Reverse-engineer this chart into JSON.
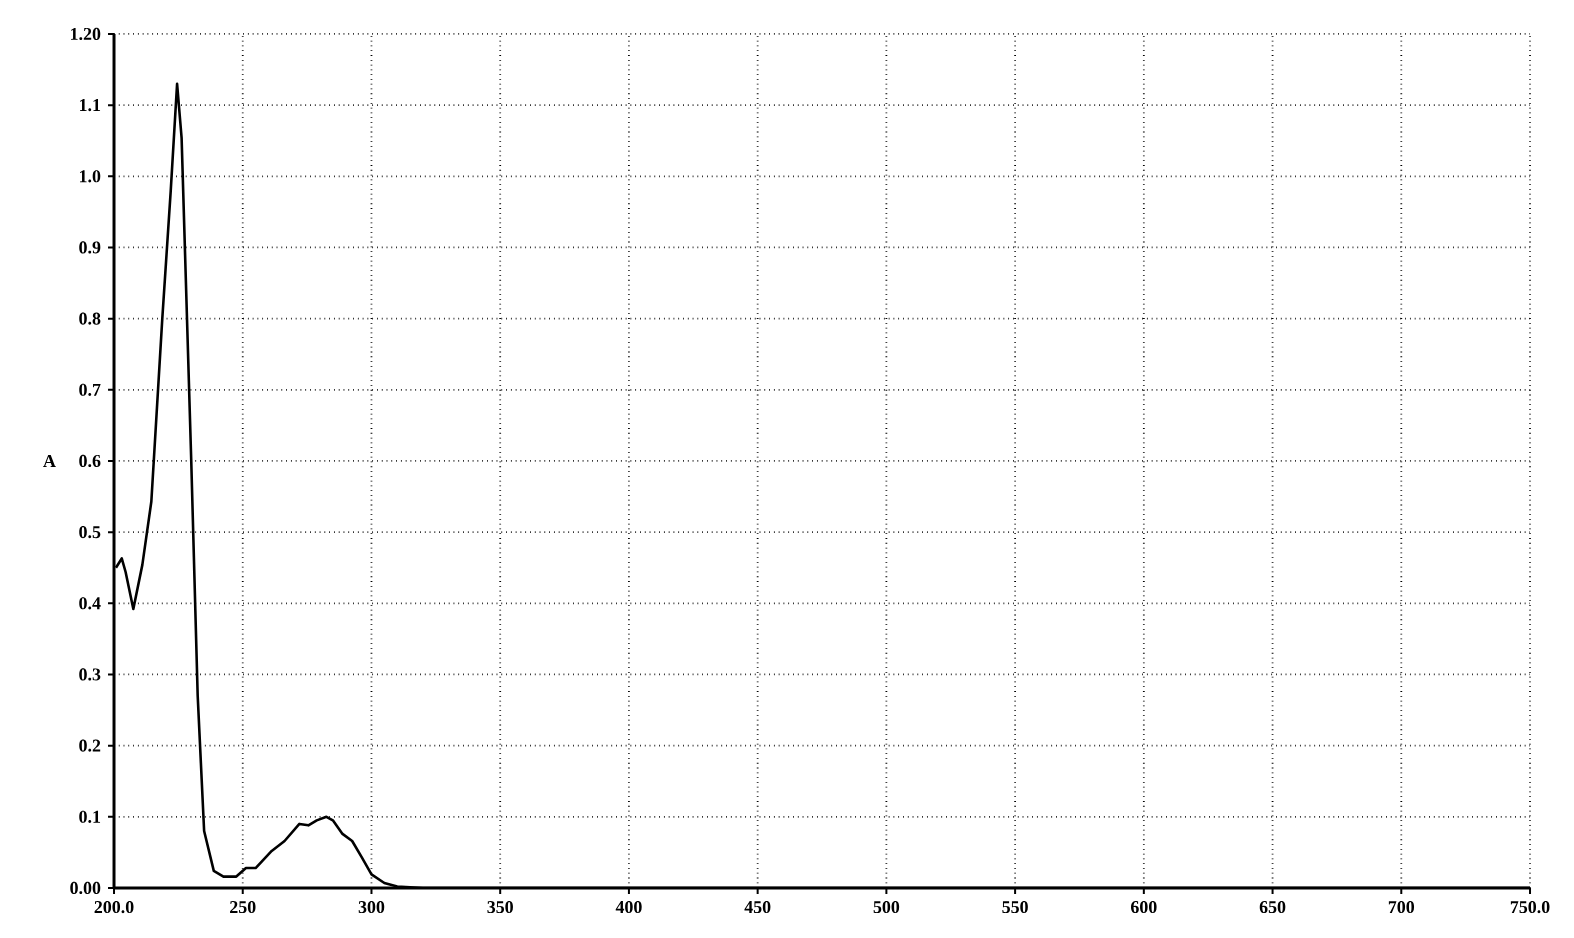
{
  "chart_data": {
    "type": "line",
    "ylabel": "A",
    "grid": true,
    "line_style": "solid",
    "marker": "none",
    "xlim": [
      200,
      750
    ],
    "ylim": [
      0,
      1.2
    ],
    "xticks": [
      {
        "value": 200,
        "label": "200.0"
      },
      250,
      300,
      350,
      400,
      450,
      500,
      550,
      600,
      650,
      700,
      {
        "value": 750,
        "label": "750.0"
      }
    ],
    "yticks": [
      {
        "value": 0,
        "label": "0.00"
      },
      0.1,
      0.2,
      0.3,
      0.4,
      0.5,
      0.6,
      0.7,
      0.8,
      0.9,
      {
        "value": 1.0,
        "label": "1.0"
      },
      1.1,
      {
        "value": 1.2,
        "label": "1.20"
      }
    ],
    "series": [
      {
        "color": "#000000",
        "x": [
          200.75,
          203,
          204.5,
          207.5,
          211,
          214.5,
          218.75,
          222,
          224.5,
          226.25,
          230,
          232.5,
          235,
          238.75,
          242.5,
          247.5,
          251.25,
          255,
          261.25,
          266.25,
          272,
          275.5,
          278.75,
          282.5,
          285,
          288.75,
          292.5,
          296.25,
          300,
          305,
          310,
          320,
          750
        ],
        "values": [
          0.45,
          0.463,
          0.444,
          0.392,
          0.454,
          0.543,
          0.8,
          0.978,
          1.13,
          1.054,
          0.6,
          0.27,
          0.08,
          0.024,
          0.016,
          0.016,
          0.028,
          0.028,
          0.052,
          0.066,
          0.09,
          0.088,
          0.095,
          0.1,
          0.095,
          0.076,
          0.066,
          0.043,
          0.019,
          0.007,
          0.002,
          0,
          0
        ]
      }
    ]
  }
}
